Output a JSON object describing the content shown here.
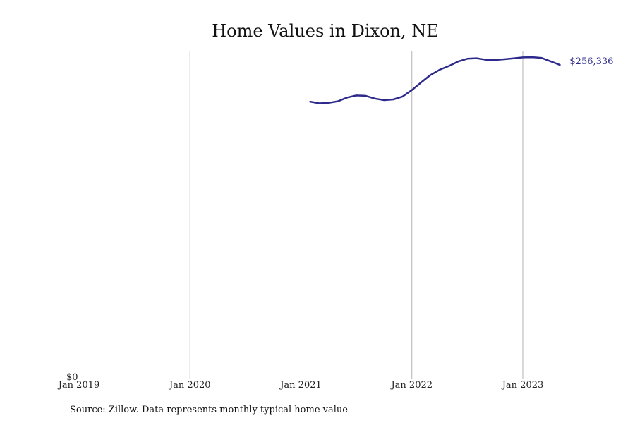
{
  "chart_data": {
    "type": "line",
    "title": "Home Values in Dixon, NE",
    "source": "Source: Zillow. Data represents monthly typical home value",
    "xlabel": "",
    "ylabel": "",
    "x_ticks": [
      "Jan 2019",
      "Jan 2020",
      "Jan 2021",
      "Jan 2022",
      "Jan 2023"
    ],
    "y_tick_label": "$0",
    "xlim": [
      "2019-01",
      "2023-07"
    ],
    "ylim": [
      0,
      268000
    ],
    "grid": "vertical",
    "line_color": "#2e2a8c",
    "end_label": "$256,336",
    "series": [
      {
        "x": [
          "2021-02",
          "2021-03",
          "2021-04",
          "2021-05",
          "2021-06",
          "2021-07",
          "2021-08",
          "2021-09",
          "2021-10",
          "2021-11",
          "2021-12",
          "2022-01",
          "2022-02",
          "2022-03",
          "2022-04",
          "2022-05",
          "2022-06",
          "2022-07",
          "2022-08",
          "2022-09",
          "2022-10",
          "2022-11",
          "2022-12",
          "2023-01",
          "2023-02",
          "2023-03",
          "2023-04",
          "2023-05"
        ],
        "values": [
          225900,
          224500,
          224900,
          226200,
          229300,
          231000,
          230700,
          228400,
          227100,
          227700,
          230100,
          235500,
          241800,
          247900,
          252300,
          255400,
          259100,
          261400,
          261800,
          260600,
          260400,
          261000,
          261700,
          262500,
          262700,
          262100,
          259300,
          256336
        ]
      }
    ]
  }
}
